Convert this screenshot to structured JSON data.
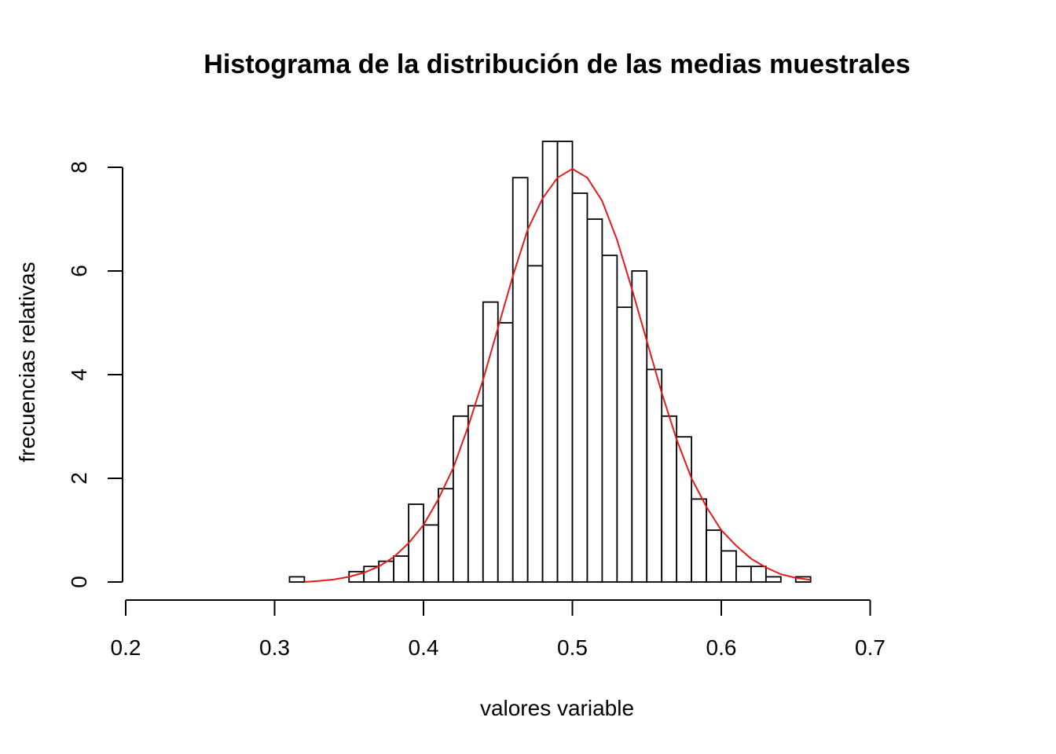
{
  "chart_data": {
    "type": "bar",
    "title": "Histograma de la distribución de las medias muestrales",
    "xlabel": "valores variable",
    "ylabel": "frecuencias relativas",
    "xlim": [
      0.2,
      0.75
    ],
    "ylim": [
      0,
      8.5
    ],
    "x_ticks": [
      "0.2",
      "0.3",
      "0.4",
      "0.5",
      "0.6",
      "0.7"
    ],
    "y_ticks": [
      "0",
      "2",
      "4",
      "6",
      "8"
    ],
    "grid": false,
    "histogram": {
      "bin_width": 0.01,
      "bins_start": 0.22,
      "values": [
        0,
        0,
        0,
        0,
        0,
        0,
        0,
        0,
        0,
        0.1,
        0,
        0,
        0,
        0.2,
        0.3,
        0.4,
        0.5,
        1.5,
        1.1,
        1.8,
        3.2,
        3.4,
        5.4,
        5.0,
        7.8,
        6.1,
        8.5,
        8.5,
        7.5,
        7.0,
        6.3,
        5.3,
        6.0,
        4.1,
        3.2,
        2.8,
        1.6,
        1.0,
        0.6,
        0.3,
        0.3,
        0.1,
        0.0,
        0.1,
        0,
        0,
        0,
        0,
        0,
        0,
        0,
        0,
        0,
        0
      ]
    },
    "curve": {
      "color": "#e41a1c",
      "x": [
        0.32,
        0.33,
        0.34,
        0.35,
        0.36,
        0.37,
        0.38,
        0.39,
        0.4,
        0.41,
        0.42,
        0.43,
        0.44,
        0.45,
        0.46,
        0.47,
        0.48,
        0.49,
        0.5,
        0.51,
        0.52,
        0.53,
        0.54,
        0.55,
        0.56,
        0.57,
        0.58,
        0.59,
        0.6,
        0.61,
        0.62,
        0.63,
        0.64,
        0.65,
        0.66
      ],
      "y": [
        0.0,
        0.02,
        0.05,
        0.1,
        0.18,
        0.3,
        0.48,
        0.75,
        1.1,
        1.6,
        2.2,
        3.0,
        3.9,
        4.9,
        5.9,
        6.8,
        7.4,
        7.8,
        7.97,
        7.8,
        7.35,
        6.6,
        5.65,
        4.65,
        3.65,
        2.75,
        2.0,
        1.45,
        1.0,
        0.7,
        0.45,
        0.28,
        0.15,
        0.08,
        0.04
      ]
    }
  }
}
